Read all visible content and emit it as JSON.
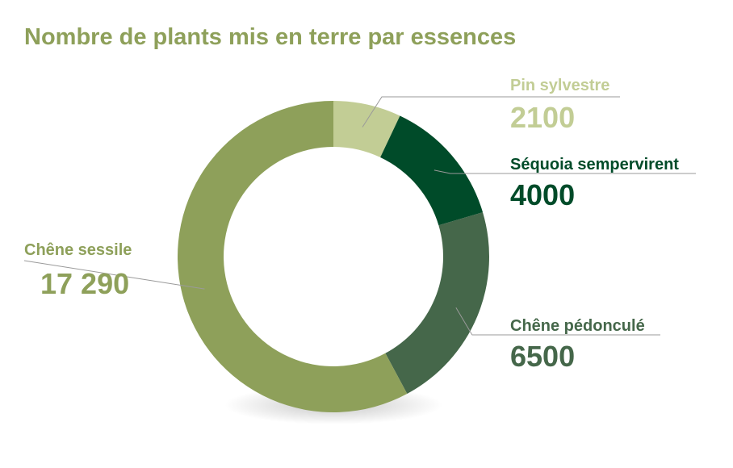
{
  "chart_data": {
    "type": "pie",
    "title": "Nombre de plants mis en terre par essences",
    "style": "donut",
    "series": [
      {
        "name": "Pin sylvestre",
        "value": 2100,
        "value_label": "2100",
        "color": "#c2cd95"
      },
      {
        "name": "Séquoia sempervirent",
        "value": 4000,
        "value_label": "4000",
        "color": "#004b29"
      },
      {
        "name": "Chêne pédonculé",
        "value": 6500,
        "value_label": "6500",
        "color": "#45674a"
      },
      {
        "name": "Chêne sessile",
        "value": 17290,
        "value_label": "17 290",
        "color": "#8ea05a"
      }
    ],
    "legend": "none",
    "label_colors": [
      "#c2cd95",
      "#004b29",
      "#45674a",
      "#8ea05a"
    ],
    "leader_line_color": "#9a9a9a"
  }
}
